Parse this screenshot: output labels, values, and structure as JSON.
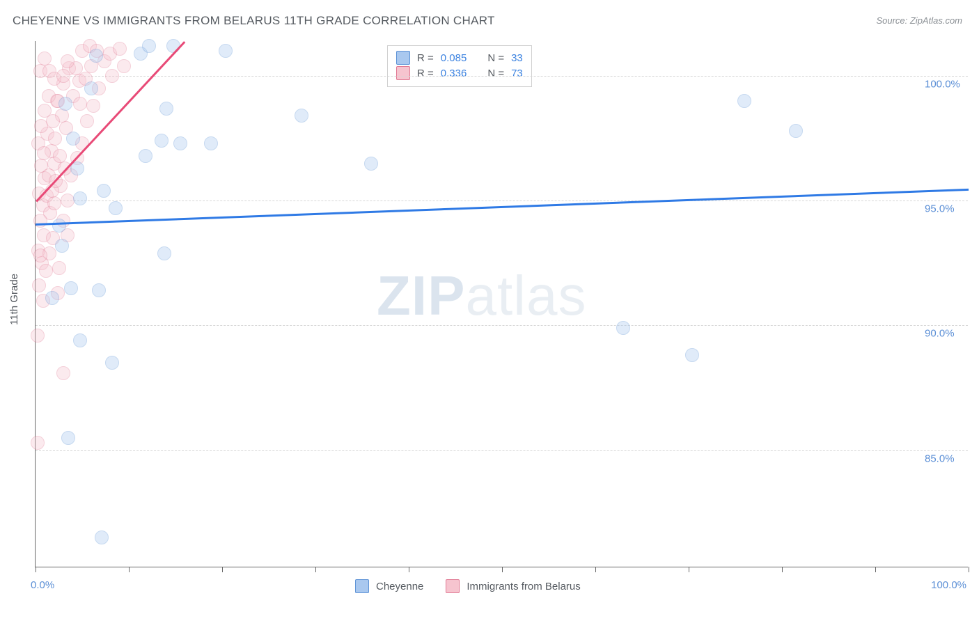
{
  "title": "CHEYENNE VS IMMIGRANTS FROM BELARUS 11TH GRADE CORRELATION CHART",
  "source": "Source: ZipAtlas.com",
  "y_axis_title": "11th Grade",
  "watermark": {
    "zip": "ZIP",
    "atlas": "atlas"
  },
  "chart": {
    "type": "scatter",
    "xlim": [
      0,
      100
    ],
    "ylim": [
      80.3,
      101.4
    ],
    "x_tick_positions_pct": [
      0,
      10,
      20,
      30,
      40,
      50,
      60,
      70,
      80,
      90,
      100
    ],
    "x_tick_labels": {
      "min": "0.0%",
      "max": "100.0%"
    },
    "y_gridlines": [
      85.0,
      90.0,
      95.0,
      100.0
    ],
    "y_tick_labels": [
      "85.0%",
      "90.0%",
      "95.0%",
      "100.0%"
    ],
    "background_color": "#ffffff",
    "grid_color": "#d6d6d6",
    "point_radius": 10,
    "point_opacity": 0.35,
    "series": [
      {
        "id": "cheyenne",
        "label": "Cheyenne",
        "fill": "#a9c8ef",
        "stroke": "#5e93d6",
        "trend_color": "#2f7ae5",
        "trend_width": 2.5,
        "R": "0.085",
        "N": "33",
        "trend": {
          "y_at_x0": 94.1,
          "y_at_x100": 95.5
        },
        "points": [
          {
            "x": 11.3,
            "y": 100.9
          },
          {
            "x": 12.2,
            "y": 101.2
          },
          {
            "x": 14.8,
            "y": 101.2
          },
          {
            "x": 20.4,
            "y": 101.0
          },
          {
            "x": 14.0,
            "y": 98.7
          },
          {
            "x": 13.5,
            "y": 97.4
          },
          {
            "x": 15.5,
            "y": 97.3
          },
          {
            "x": 18.8,
            "y": 97.3
          },
          {
            "x": 4.5,
            "y": 96.3
          },
          {
            "x": 11.8,
            "y": 96.8
          },
          {
            "x": 7.3,
            "y": 95.4
          },
          {
            "x": 4.8,
            "y": 95.1
          },
          {
            "x": 28.5,
            "y": 98.4
          },
          {
            "x": 36.0,
            "y": 96.5
          },
          {
            "x": 76.0,
            "y": 99.0
          },
          {
            "x": 81.5,
            "y": 97.8
          },
          {
            "x": 13.8,
            "y": 92.9
          },
          {
            "x": 3.8,
            "y": 91.5
          },
          {
            "x": 6.8,
            "y": 91.4
          },
          {
            "x": 4.8,
            "y": 89.4
          },
          {
            "x": 8.2,
            "y": 88.5
          },
          {
            "x": 2.8,
            "y": 93.2
          },
          {
            "x": 70.4,
            "y": 88.8
          },
          {
            "x": 63.0,
            "y": 89.9
          },
          {
            "x": 3.5,
            "y": 85.5
          },
          {
            "x": 7.1,
            "y": 81.5
          },
          {
            "x": 1.8,
            "y": 91.1
          },
          {
            "x": 2.5,
            "y": 94.0
          },
          {
            "x": 4.0,
            "y": 97.5
          },
          {
            "x": 3.2,
            "y": 98.9
          },
          {
            "x": 6.5,
            "y": 100.8
          },
          {
            "x": 6.0,
            "y": 99.5
          },
          {
            "x": 8.6,
            "y": 94.7
          }
        ]
      },
      {
        "id": "belarus",
        "label": "Immigrants from Belarus",
        "fill": "#f6c4cf",
        "stroke": "#e17a94",
        "trend_color": "#e84a77",
        "trend_width": 2.5,
        "R": "0.336",
        "N": "73",
        "trend": {
          "x0": 0.1,
          "y0": 95.0,
          "x1": 16.0,
          "y1": 101.4
        },
        "points": [
          {
            "x": 5.0,
            "y": 101.0
          },
          {
            "x": 5.8,
            "y": 101.2
          },
          {
            "x": 6.6,
            "y": 101.0
          },
          {
            "x": 7.4,
            "y": 100.6
          },
          {
            "x": 8.0,
            "y": 100.9
          },
          {
            "x": 8.2,
            "y": 100.0
          },
          {
            "x": 9.0,
            "y": 101.1
          },
          {
            "x": 9.5,
            "y": 100.4
          },
          {
            "x": 3.6,
            "y": 100.3
          },
          {
            "x": 3.0,
            "y": 99.7
          },
          {
            "x": 4.0,
            "y": 99.2
          },
          {
            "x": 4.7,
            "y": 99.8
          },
          {
            "x": 2.3,
            "y": 99.0
          },
          {
            "x": 2.8,
            "y": 98.4
          },
          {
            "x": 3.3,
            "y": 97.9
          },
          {
            "x": 1.3,
            "y": 97.7
          },
          {
            "x": 1.7,
            "y": 97.0
          },
          {
            "x": 2.0,
            "y": 96.5
          },
          {
            "x": 0.6,
            "y": 96.4
          },
          {
            "x": 1.0,
            "y": 95.9
          },
          {
            "x": 0.4,
            "y": 95.3
          },
          {
            "x": 0.8,
            "y": 94.8
          },
          {
            "x": 1.2,
            "y": 95.2
          },
          {
            "x": 1.6,
            "y": 94.5
          },
          {
            "x": 2.0,
            "y": 94.9
          },
          {
            "x": 0.5,
            "y": 94.2
          },
          {
            "x": 0.9,
            "y": 93.6
          },
          {
            "x": 0.3,
            "y": 93.0
          },
          {
            "x": 0.7,
            "y": 92.5
          },
          {
            "x": 1.5,
            "y": 92.9
          },
          {
            "x": 1.1,
            "y": 92.2
          },
          {
            "x": 0.4,
            "y": 91.6
          },
          {
            "x": 0.8,
            "y": 91.0
          },
          {
            "x": 2.4,
            "y": 91.3
          },
          {
            "x": 0.2,
            "y": 89.6
          },
          {
            "x": 3.0,
            "y": 88.1
          },
          {
            "x": 0.2,
            "y": 85.3
          },
          {
            "x": 2.7,
            "y": 95.6
          },
          {
            "x": 3.4,
            "y": 95.0
          },
          {
            "x": 3.8,
            "y": 96.0
          },
          {
            "x": 4.5,
            "y": 96.7
          },
          {
            "x": 5.0,
            "y": 97.3
          },
          {
            "x": 5.5,
            "y": 98.2
          },
          {
            "x": 6.2,
            "y": 98.8
          },
          {
            "x": 6.8,
            "y": 99.5
          },
          {
            "x": 2.1,
            "y": 97.5
          },
          {
            "x": 2.6,
            "y": 96.8
          },
          {
            "x": 3.1,
            "y": 96.3
          },
          {
            "x": 1.4,
            "y": 96.0
          },
          {
            "x": 1.8,
            "y": 95.4
          },
          {
            "x": 2.2,
            "y": 95.8
          },
          {
            "x": 0.3,
            "y": 97.3
          },
          {
            "x": 0.6,
            "y": 98.0
          },
          {
            "x": 1.0,
            "y": 98.6
          },
          {
            "x": 1.4,
            "y": 99.2
          },
          {
            "x": 0.5,
            "y": 100.2
          },
          {
            "x": 1.0,
            "y": 100.7
          },
          {
            "x": 1.5,
            "y": 100.2
          },
          {
            "x": 2.0,
            "y": 99.9
          },
          {
            "x": 4.3,
            "y": 100.3
          },
          {
            "x": 4.8,
            "y": 98.9
          },
          {
            "x": 5.4,
            "y": 99.9
          },
          {
            "x": 6.0,
            "y": 100.4
          },
          {
            "x": 3.0,
            "y": 94.2
          },
          {
            "x": 3.4,
            "y": 93.6
          },
          {
            "x": 0.5,
            "y": 92.8
          },
          {
            "x": 1.9,
            "y": 93.5
          },
          {
            "x": 2.5,
            "y": 92.3
          },
          {
            "x": 0.9,
            "y": 96.9
          },
          {
            "x": 1.9,
            "y": 98.2
          },
          {
            "x": 2.4,
            "y": 99.0
          },
          {
            "x": 3.0,
            "y": 100.0
          },
          {
            "x": 3.4,
            "y": 100.6
          }
        ]
      }
    ]
  },
  "legend_top": {
    "r_label": "R =",
    "n_label": "N ="
  },
  "legend_bottom": [
    {
      "label": "Cheyenne",
      "fill": "#a9c8ef",
      "stroke": "#5e93d6"
    },
    {
      "label": "Immigrants from Belarus",
      "fill": "#f6c4cf",
      "stroke": "#e17a94"
    }
  ]
}
